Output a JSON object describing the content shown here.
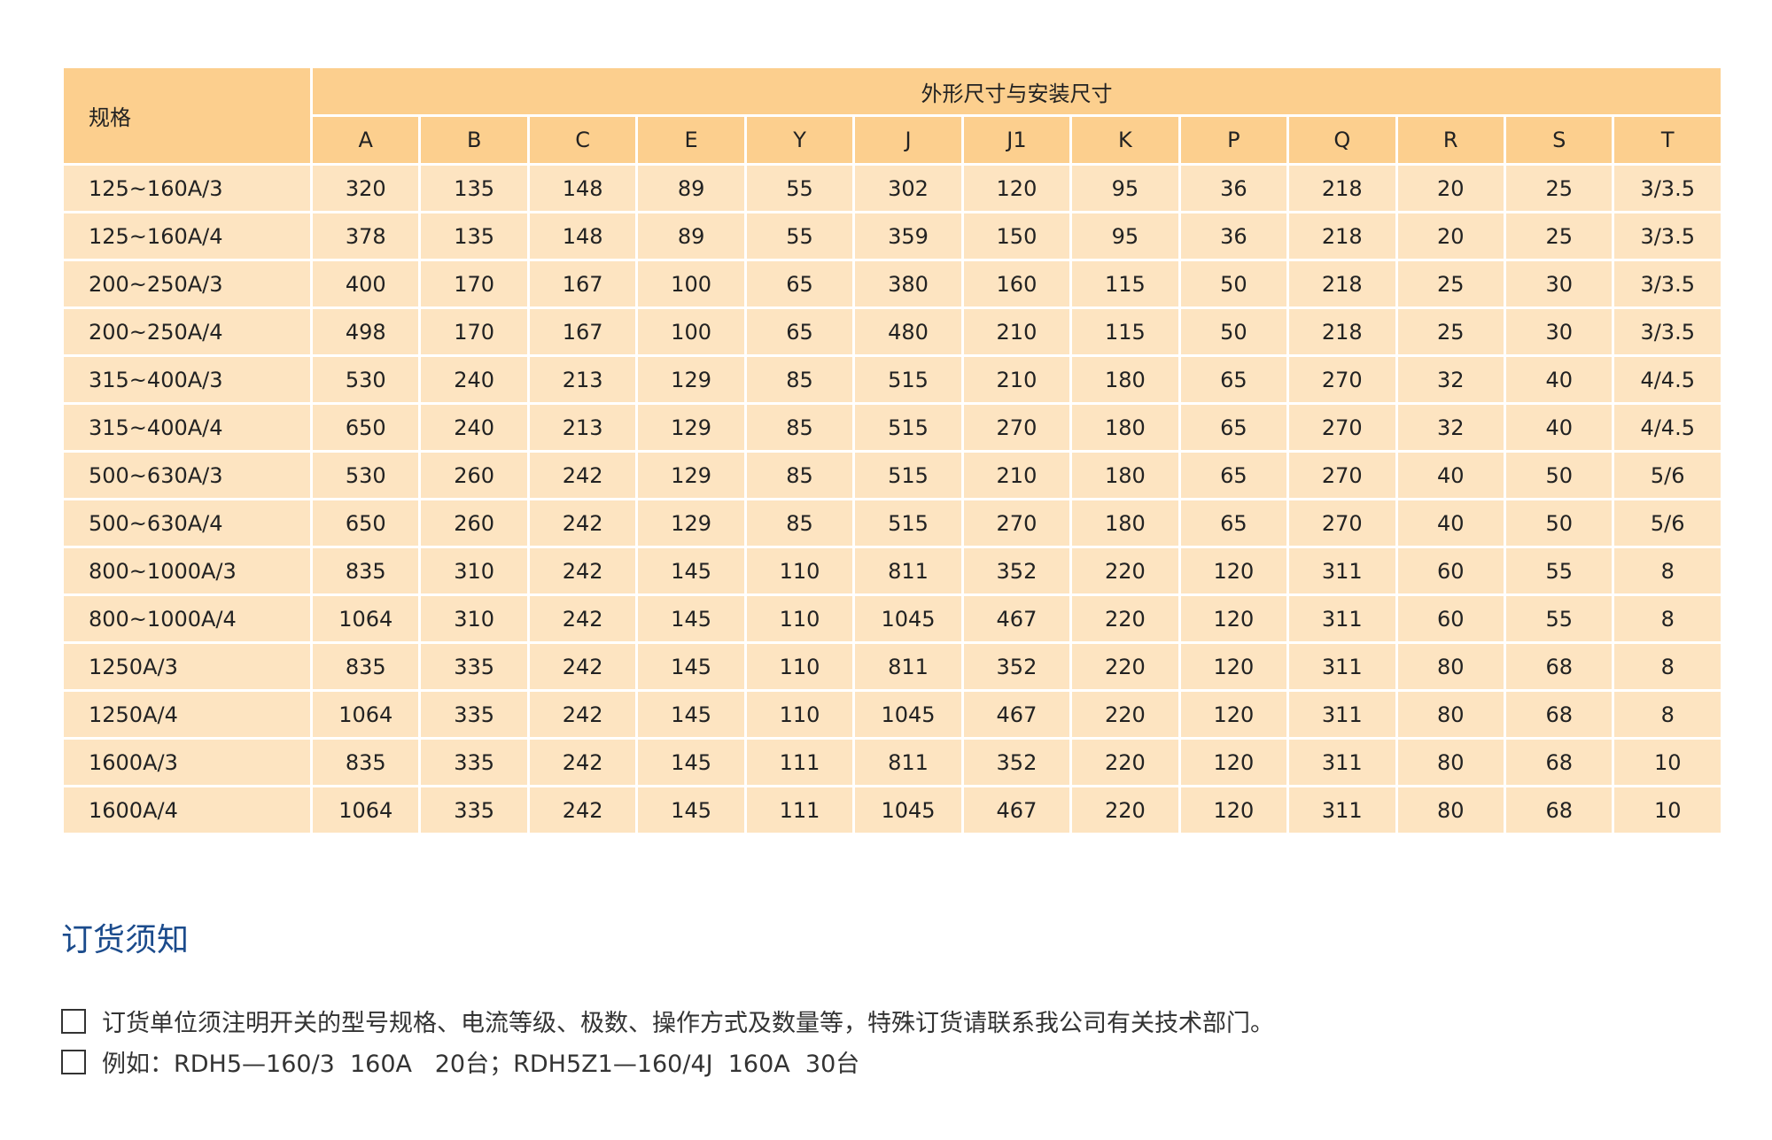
{
  "table": {
    "spec_header": "规格",
    "group_header": "外形尺寸与安装尺寸",
    "columns": [
      "A",
      "B",
      "C",
      "E",
      "Y",
      "J",
      "J1",
      "K",
      "P",
      "Q",
      "R",
      "S",
      "T"
    ],
    "rows": [
      [
        "125~160A/3",
        "320",
        "135",
        "148",
        "89",
        "55",
        "302",
        "120",
        "95",
        "36",
        "218",
        "20",
        "25",
        "3/3.5"
      ],
      [
        "125~160A/4",
        "378",
        "135",
        "148",
        "89",
        "55",
        "359",
        "150",
        "95",
        "36",
        "218",
        "20",
        "25",
        "3/3.5"
      ],
      [
        "200~250A/3",
        "400",
        "170",
        "167",
        "100",
        "65",
        "380",
        "160",
        "115",
        "50",
        "218",
        "25",
        "30",
        "3/3.5"
      ],
      [
        "200~250A/4",
        "498",
        "170",
        "167",
        "100",
        "65",
        "480",
        "210",
        "115",
        "50",
        "218",
        "25",
        "30",
        "3/3.5"
      ],
      [
        "315~400A/3",
        "530",
        "240",
        "213",
        "129",
        "85",
        "515",
        "210",
        "180",
        "65",
        "270",
        "32",
        "40",
        "4/4.5"
      ],
      [
        "315~400A/4",
        "650",
        "240",
        "213",
        "129",
        "85",
        "515",
        "270",
        "180",
        "65",
        "270",
        "32",
        "40",
        "4/4.5"
      ],
      [
        "500~630A/3",
        "530",
        "260",
        "242",
        "129",
        "85",
        "515",
        "210",
        "180",
        "65",
        "270",
        "40",
        "50",
        "5/6"
      ],
      [
        "500~630A/4",
        "650",
        "260",
        "242",
        "129",
        "85",
        "515",
        "270",
        "180",
        "65",
        "270",
        "40",
        "50",
        "5/6"
      ],
      [
        "800~1000A/3",
        "835",
        "310",
        "242",
        "145",
        "110",
        "811",
        "352",
        "220",
        "120",
        "311",
        "60",
        "55",
        "8"
      ],
      [
        "800~1000A/4",
        "1064",
        "310",
        "242",
        "145",
        "110",
        "1045",
        "467",
        "220",
        "120",
        "311",
        "60",
        "55",
        "8"
      ],
      [
        "1250A/3",
        "835",
        "335",
        "242",
        "145",
        "110",
        "811",
        "352",
        "220",
        "120",
        "311",
        "80",
        "68",
        "8"
      ],
      [
        "1250A/4",
        "1064",
        "335",
        "242",
        "145",
        "110",
        "1045",
        "467",
        "220",
        "120",
        "311",
        "80",
        "68",
        "8"
      ],
      [
        "1600A/3",
        "835",
        "335",
        "242",
        "145",
        "111",
        "811",
        "352",
        "220",
        "120",
        "311",
        "80",
        "68",
        "10"
      ],
      [
        "1600A/4",
        "1064",
        "335",
        "242",
        "145",
        "111",
        "1045",
        "467",
        "220",
        "120",
        "311",
        "80",
        "68",
        "10"
      ]
    ]
  },
  "notice": {
    "title": "订货须知",
    "items": [
      "订货单位须注明开关的型号规格、电流等级、极数、操作方式及数量等，特殊订货请联系我公司有关技术部门。",
      "例如：RDH5—160/3  160A   20台；RDH5Z1—160/4J  160A  30台"
    ]
  },
  "colors": {
    "header_bg": "#fccf8e",
    "row_bg": "#fde4c1",
    "title": "#1b4b8c"
  }
}
